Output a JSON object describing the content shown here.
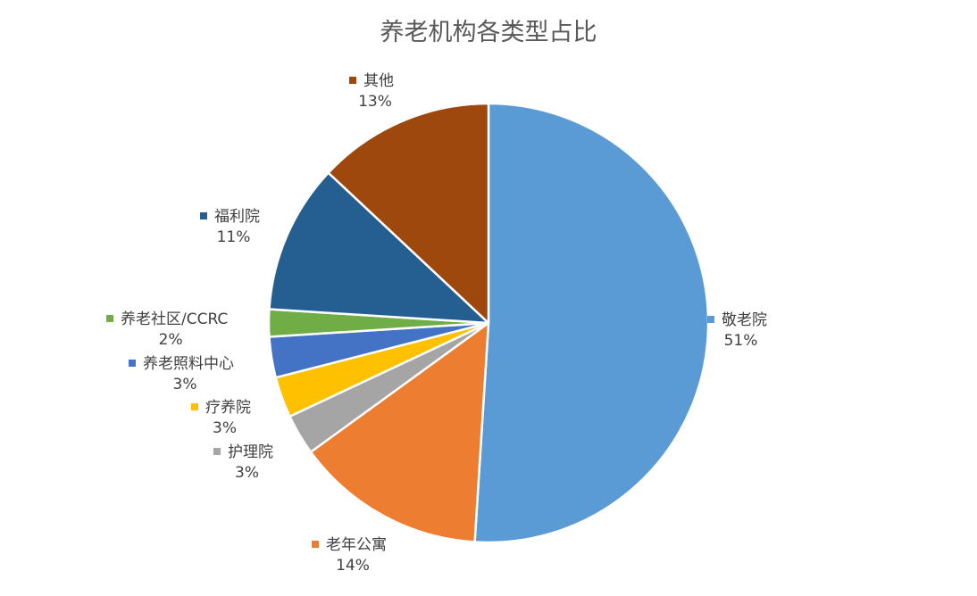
{
  "chart_data": {
    "type": "pie",
    "title": "养老机构各类型占比",
    "slices": [
      {
        "label": "敬老院",
        "value": 51,
        "pct_label": "51%",
        "color": "#5B9BD5"
      },
      {
        "label": "老年公寓",
        "value": 14,
        "pct_label": "14%",
        "color": "#ED7D31"
      },
      {
        "label": "护理院",
        "value": 3,
        "pct_label": "3%",
        "color": "#A5A5A5"
      },
      {
        "label": "疗养院",
        "value": 3,
        "pct_label": "3%",
        "color": "#FFC000"
      },
      {
        "label": "养老照料中心",
        "value": 3,
        "pct_label": "3%",
        "color": "#4472C4"
      },
      {
        "label": "养老社区/CCRC",
        "value": 2,
        "pct_label": "2%",
        "color": "#70AD47"
      },
      {
        "label": "福利院",
        "value": 11,
        "pct_label": "11%",
        "color": "#255E91"
      },
      {
        "label": "其他",
        "value": 13,
        "pct_label": "13%",
        "color": "#9E480E"
      }
    ]
  }
}
